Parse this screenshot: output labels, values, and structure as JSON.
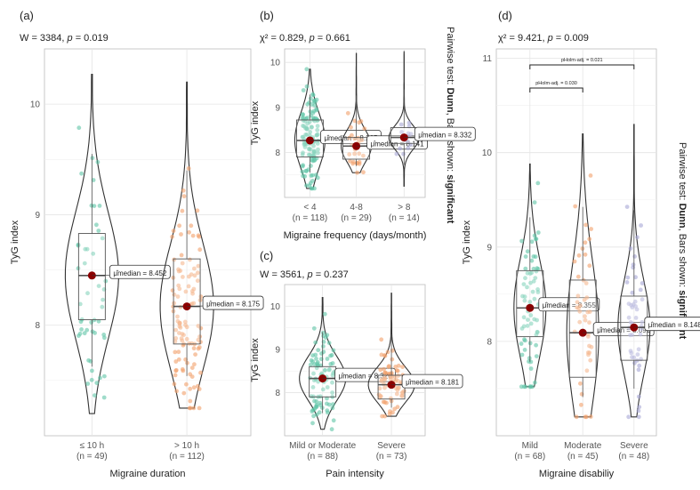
{
  "colors": {
    "green": "#5fc4a6",
    "orange": "#f2a06a",
    "purple": "#a7a6d6",
    "median_dot": "#8b0000",
    "grid": "#e4e4e4",
    "frame": "#bdbdbd"
  },
  "chart_data": [
    {
      "type": "violin",
      "panel": "(a)",
      "subtitle_stat": "W = 3384, ",
      "subtitle_p": "p",
      "subtitle_pval": " = 0.019",
      "ylabel": "TyG index",
      "xlabel": "Migraine duration",
      "ylim": [
        7.0,
        10.5
      ],
      "yticks": [
        "8",
        "9",
        "10"
      ],
      "ytick_values": [
        8,
        9,
        10
      ],
      "groups": [
        {
          "name": "≤ 10 h",
          "n_label": "(n = 49)",
          "color": "green",
          "n": 49,
          "min": 7.2,
          "q1": 8.05,
          "median": 8.45,
          "q3": 8.83,
          "max": 10.27,
          "median_label": "μ̂median = 8.452"
        },
        {
          "name": "> 10 h",
          "n_label": "(n = 112)",
          "color": "orange",
          "n": 112,
          "min": 7.25,
          "q1": 7.83,
          "median": 8.17,
          "q3": 8.6,
          "max": 10.2,
          "median_label": "μ̂median = 8.175"
        }
      ]
    },
    {
      "type": "violin",
      "panel": "(b)",
      "subtitle_stat": "χ² = 0.829, ",
      "subtitle_p": "p",
      "subtitle_pval": " = 0.661",
      "ylabel": "TyG index",
      "xlabel": "Migraine frequency (days/month)",
      "ylim": [
        7.0,
        10.3
      ],
      "yticks": [
        "8",
        "9",
        "10"
      ],
      "ytick_values": [
        8,
        9,
        10
      ],
      "groups": [
        {
          "name": "< 4",
          "n_label": "(n = 118)",
          "color": "green",
          "n": 118,
          "min": 7.2,
          "q1": 7.9,
          "median": 8.265,
          "q3": 8.72,
          "max": 9.85,
          "median_label": "μ̂median = 8.265"
        },
        {
          "name": "4-8",
          "n_label": "(n = 29)",
          "color": "orange",
          "n": 29,
          "min": 7.55,
          "q1": 7.85,
          "median": 8.141,
          "q3": 8.33,
          "max": 10.2,
          "median_label": "μ̂median = 8.141"
        },
        {
          "name": "> 8",
          "n_label": "(n = 14)",
          "color": "purple",
          "n": 14,
          "min": 7.25,
          "q1": 8.2,
          "median": 8.332,
          "q3": 8.55,
          "max": 10.25,
          "median_label": "μ̂median = 8.332"
        }
      ]
    },
    {
      "type": "violin",
      "panel": "(c)",
      "subtitle_stat": "W = 3561, ",
      "subtitle_p": "p",
      "subtitle_pval": " = 0.237",
      "ylabel": "TyG index",
      "xlabel": "Pain intensity",
      "ylim": [
        7.0,
        10.5
      ],
      "yticks": [
        "8",
        "9",
        "10"
      ],
      "ytick_values": [
        8,
        9,
        10
      ],
      "groups": [
        {
          "name": "Mild or Moderate",
          "n_label": "(n = 88)",
          "color": "green",
          "n": 88,
          "min": 7.15,
          "q1": 7.9,
          "median": 8.326,
          "q3": 8.6,
          "max": 10.2,
          "median_label": "μ̂median = 8.326"
        },
        {
          "name": "Severe",
          "n_label": "(n = 73)",
          "color": "orange",
          "n": 73,
          "min": 7.45,
          "q1": 7.85,
          "median": 8.181,
          "q3": 8.4,
          "max": 10.3,
          "median_label": "μ̂median = 8.181"
        }
      ]
    },
    {
      "type": "violin",
      "panel": "(d)",
      "subtitle_stat": "χ² = 9.421, ",
      "subtitle_p": "p",
      "subtitle_pval": " = 0.009",
      "ylabel": "TyG index",
      "xlabel": "Migraine disabiliy",
      "ylim": [
        7.0,
        11.1
      ],
      "yticks": [
        "8",
        "9",
        "10",
        "11"
      ],
      "ytick_values": [
        8,
        9,
        10,
        11
      ],
      "groups": [
        {
          "name": "Mild",
          "n_label": "(n = 68)",
          "color": "green",
          "n": 68,
          "min": 7.52,
          "q1": 8.05,
          "median": 8.355,
          "q3": 8.75,
          "max": 9.88,
          "median_label": "μ̂median = 8.355"
        },
        {
          "name": "Moderate",
          "n_label": "(n = 45)",
          "color": "orange",
          "n": 45,
          "min": 7.2,
          "q1": 7.62,
          "median": 8.092,
          "q3": 8.65,
          "max": 10.2,
          "median_label": "μ̂median = 8.092"
        },
        {
          "name": "Severe",
          "n_label": "(n = 48)",
          "color": "purple",
          "n": 48,
          "min": 7.2,
          "q1": 7.8,
          "median": 8.148,
          "q3": 8.48,
          "max": 10.3,
          "median_label": "μ̂median = 8.148"
        }
      ],
      "pairwise_bars": [
        {
          "from": 0,
          "to": 1,
          "label": "pHolm-adj. = 0.030"
        },
        {
          "from": 0,
          "to": 2,
          "label": "pHolm-adj. = 0.021"
        }
      ]
    }
  ],
  "side_label_b": {
    "prefix": "Pairwise test: ",
    "test": "Dunn",
    "mid": ", Bars shown: ",
    "shown": "significant"
  },
  "side_label_d": {
    "prefix": "Pairwise test: ",
    "test": "Dunn",
    "mid": ", Bars shown: ",
    "shown": "significant"
  }
}
